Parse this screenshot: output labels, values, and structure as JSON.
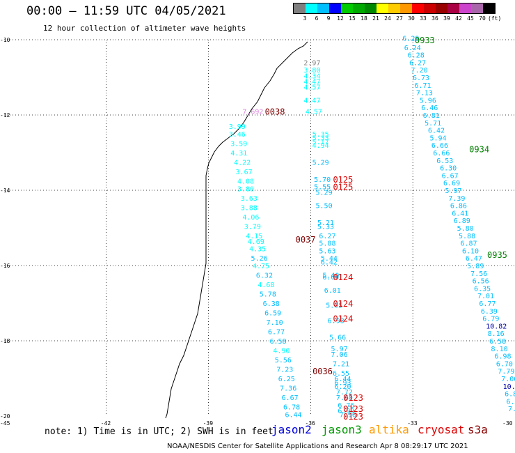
{
  "title": "00:00 – 11:59 UTC 04/05/2021",
  "subtitle": "12 hour collection of altimeter wave heights",
  "scale": {
    "colors": [
      "#808080",
      "#00ffff",
      "#00bfff",
      "#0000ff",
      "#00cc00",
      "#00aa00",
      "#008800",
      "#ffff00",
      "#ffcc00",
      "#ff9900",
      "#ff0000",
      "#cc0000",
      "#990000",
      "#aa0044",
      "#cc44cc",
      "#aa66aa",
      "#000000"
    ],
    "labels": [
      "3",
      "6",
      "9",
      "12",
      "15",
      "18",
      "21",
      "24",
      "27",
      "30",
      "33",
      "36",
      "39",
      "42",
      "45",
      "70",
      "(ft)"
    ]
  },
  "axes": {
    "y_labels": [
      "-10",
      "-12",
      "-14",
      "-16",
      "-18",
      "-20"
    ],
    "x_labels": [
      "-45",
      "-42",
      "-39",
      "-36",
      "-33",
      "-30"
    ]
  },
  "chart_data": {
    "type": "scatter",
    "xlim": [
      -45,
      -30
    ],
    "ylim": [
      -20,
      -10
    ],
    "grid": true,
    "passes": [
      {
        "time": "0933",
        "color": "#008000",
        "label_pos": [
          -32.7,
          -10.0
        ]
      },
      {
        "time": "0934",
        "color": "#008000",
        "label_pos": [
          -31.1,
          -12.9
        ]
      },
      {
        "time": "0935",
        "color": "#008000",
        "label_pos": [
          -30.0,
          -15.7
        ]
      },
      {
        "time": "0038",
        "color": "#800000",
        "label_pos": [
          -37.1,
          -11.9
        ]
      },
      {
        "time": "0037",
        "color": "#800000",
        "label_pos": [
          -36.2,
          -15.3
        ]
      },
      {
        "time": "0036",
        "color": "#800000",
        "label_pos": [
          -35.7,
          -18.8
        ]
      },
      {
        "time": "0125",
        "color": "#e00000",
        "label_pos": [
          -35.1,
          -13.7
        ]
      },
      {
        "time": "0125",
        "color": "#e00000",
        "label_pos": [
          -35.1,
          -13.9
        ]
      },
      {
        "time": "0124",
        "color": "#e00000",
        "label_pos": [
          -35.1,
          -16.3
        ]
      },
      {
        "time": "0124",
        "color": "#e00000",
        "label_pos": [
          -35.1,
          -17.0
        ]
      },
      {
        "time": "0124",
        "color": "#e00000",
        "label_pos": [
          -35.1,
          -17.4
        ]
      },
      {
        "time": "0123",
        "color": "#e00000",
        "label_pos": [
          -34.8,
          -19.5
        ]
      },
      {
        "time": "0123",
        "color": "#e00000",
        "label_pos": [
          -34.8,
          -19.8
        ]
      },
      {
        "time": "0123",
        "color": "#e00000",
        "label_pos": [
          -34.8,
          -20.0
        ]
      }
    ],
    "points": [
      {
        "x": -33.1,
        "y": -9.95,
        "v": "6.29",
        "c": "#00bfff"
      },
      {
        "x": -33.05,
        "y": -10.2,
        "v": "6.24",
        "c": "#00bfff"
      },
      {
        "x": -32.95,
        "y": -10.4,
        "v": "6.28",
        "c": "#00bfff"
      },
      {
        "x": -32.9,
        "y": -10.6,
        "v": "6.27",
        "c": "#00bfff"
      },
      {
        "x": -32.85,
        "y": -10.8,
        "v": "7.20",
        "c": "#00bfff"
      },
      {
        "x": -32.8,
        "y": -11.0,
        "v": "6.73",
        "c": "#00bfff"
      },
      {
        "x": -32.75,
        "y": -11.2,
        "v": "6.71",
        "c": "#00bfff"
      },
      {
        "x": -32.7,
        "y": -11.4,
        "v": "7.13",
        "c": "#00bfff"
      },
      {
        "x": -32.6,
        "y": -11.6,
        "v": "5.96",
        "c": "#00bfff"
      },
      {
        "x": -32.55,
        "y": -11.8,
        "v": "6.46",
        "c": "#00bfff"
      },
      {
        "x": -32.5,
        "y": -12.0,
        "v": "6.81",
        "c": "#00bfff"
      },
      {
        "x": -32.45,
        "y": -12.2,
        "v": "5.71",
        "c": "#00bfff"
      },
      {
        "x": -32.35,
        "y": -12.4,
        "v": "6.42",
        "c": "#00bfff"
      },
      {
        "x": -32.3,
        "y": -12.6,
        "v": "5.94",
        "c": "#00bfff"
      },
      {
        "x": -32.25,
        "y": -12.8,
        "v": "6.66",
        "c": "#00bfff"
      },
      {
        "x": -32.2,
        "y": -13.0,
        "v": "6.66",
        "c": "#00bfff"
      },
      {
        "x": -32.1,
        "y": -13.2,
        "v": "6.53",
        "c": "#00bfff"
      },
      {
        "x": -32.0,
        "y": -13.4,
        "v": "6.30",
        "c": "#00bfff"
      },
      {
        "x": -31.95,
        "y": -13.6,
        "v": "6.67",
        "c": "#00bfff"
      },
      {
        "x": -31.9,
        "y": -13.8,
        "v": "6.69",
        "c": "#00bfff"
      },
      {
        "x": -31.85,
        "y": -14.0,
        "v": "5.97",
        "c": "#00bfff"
      },
      {
        "x": -31.75,
        "y": -14.2,
        "v": "7.39",
        "c": "#00bfff"
      },
      {
        "x": -31.7,
        "y": -14.4,
        "v": "6.86",
        "c": "#00bfff"
      },
      {
        "x": -31.65,
        "y": -14.6,
        "v": "6.41",
        "c": "#00bfff"
      },
      {
        "x": -31.6,
        "y": -14.8,
        "v": "6.89",
        "c": "#00bfff"
      },
      {
        "x": -31.5,
        "y": -15.0,
        "v": "5.80",
        "c": "#00bfff"
      },
      {
        "x": -31.45,
        "y": -15.2,
        "v": "5.88",
        "c": "#00bfff"
      },
      {
        "x": -31.4,
        "y": -15.4,
        "v": "6.87",
        "c": "#00bfff"
      },
      {
        "x": -31.35,
        "y": -15.6,
        "v": "6.10",
        "c": "#00bfff"
      },
      {
        "x": -31.25,
        "y": -15.8,
        "v": "6.47",
        "c": "#00bfff"
      },
      {
        "x": -31.2,
        "y": -16.0,
        "v": "5.89",
        "c": "#00bfff"
      },
      {
        "x": -31.1,
        "y": -16.2,
        "v": "7.56",
        "c": "#00bfff"
      },
      {
        "x": -31.05,
        "y": -16.4,
        "v": "6.56",
        "c": "#00bfff"
      },
      {
        "x": -31.0,
        "y": -16.6,
        "v": "6.35",
        "c": "#00bfff"
      },
      {
        "x": -30.9,
        "y": -16.8,
        "v": "7.01",
        "c": "#00bfff"
      },
      {
        "x": -30.85,
        "y": -17.0,
        "v": "6.77",
        "c": "#00bfff"
      },
      {
        "x": -30.8,
        "y": -17.2,
        "v": "6.39",
        "c": "#00bfff"
      },
      {
        "x": -30.75,
        "y": -17.4,
        "v": "6.79",
        "c": "#00bfff"
      },
      {
        "x": -30.65,
        "y": -17.6,
        "v": "10.82",
        "c": "#0000aa"
      },
      {
        "x": -30.6,
        "y": -17.8,
        "v": "8.16",
        "c": "#00bfff"
      },
      {
        "x": -30.55,
        "y": -18.0,
        "v": "6.58",
        "c": "#00bfff"
      },
      {
        "x": -30.5,
        "y": -18.2,
        "v": "8.10",
        "c": "#00bfff"
      },
      {
        "x": -30.4,
        "y": -18.4,
        "v": "6.98",
        "c": "#00bfff"
      },
      {
        "x": -30.35,
        "y": -18.6,
        "v": "6.70",
        "c": "#00bfff"
      },
      {
        "x": -30.3,
        "y": -18.8,
        "v": "7.79",
        "c": "#00bfff"
      },
      {
        "x": -30.2,
        "y": -19.0,
        "v": "7.06",
        "c": "#00bfff"
      },
      {
        "x": -30.15,
        "y": -19.2,
        "v": "10.48",
        "c": "#0000aa"
      },
      {
        "x": -30.1,
        "y": -19.4,
        "v": "6.8",
        "c": "#00bfff"
      },
      {
        "x": -30.05,
        "y": -19.6,
        "v": "6.6",
        "c": "#00bfff"
      },
      {
        "x": -30.0,
        "y": -19.8,
        "v": "7.3",
        "c": "#00bfff"
      },
      {
        "x": -36.0,
        "y": -10.6,
        "v": "2.97",
        "c": "#808080"
      },
      {
        "x": -36.0,
        "y": -10.8,
        "v": "3.80",
        "c": "#00ffff"
      },
      {
        "x": -36.0,
        "y": -10.95,
        "v": "4.34",
        "c": "#00ffff"
      },
      {
        "x": -36.0,
        "y": -11.1,
        "v": "4.47",
        "c": "#00ffff"
      },
      {
        "x": -36.0,
        "y": -11.25,
        "v": "4.57",
        "c": "#00ffff"
      },
      {
        "x": -36.0,
        "y": -11.6,
        "v": "4.47",
        "c": "#00ffff"
      },
      {
        "x": -35.95,
        "y": -11.9,
        "v": "4.57",
        "c": "#00ffff"
      },
      {
        "x": -37.8,
        "y": -11.9,
        "v": "7.692",
        "c": "#dd88dd"
      },
      {
        "x": -38.2,
        "y": -12.3,
        "v": "3.99",
        "c": "#00ffff"
      },
      {
        "x": -38.2,
        "y": -12.5,
        "v": "3.46",
        "c": "#00ffff"
      },
      {
        "x": -38.15,
        "y": -12.75,
        "v": "3.59",
        "c": "#00ffff"
      },
      {
        "x": -38.15,
        "y": -13.0,
        "v": "4.31",
        "c": "#00ffff"
      },
      {
        "x": -38.05,
        "y": -13.25,
        "v": "4.22",
        "c": "#00ffff"
      },
      {
        "x": -38.0,
        "y": -13.5,
        "v": "3.67",
        "c": "#00ffff"
      },
      {
        "x": -37.95,
        "y": -13.75,
        "v": "4.08",
        "c": "#00ffff"
      },
      {
        "x": -37.95,
        "y": -13.95,
        "v": "3.80",
        "c": "#00ffff"
      },
      {
        "x": -37.85,
        "y": -14.2,
        "v": "3.63",
        "c": "#00ffff"
      },
      {
        "x": -37.85,
        "y": -14.45,
        "v": "3.88",
        "c": "#00ffff"
      },
      {
        "x": -37.8,
        "y": -14.7,
        "v": "4.06",
        "c": "#00ffff"
      },
      {
        "x": -37.75,
        "y": -14.95,
        "v": "3.79",
        "c": "#00ffff"
      },
      {
        "x": -37.7,
        "y": -15.2,
        "v": "4.15",
        "c": "#00ffff"
      },
      {
        "x": -37.65,
        "y": -15.35,
        "v": "4.69",
        "c": "#00ffff"
      },
      {
        "x": -37.6,
        "y": -15.55,
        "v": "4.35",
        "c": "#00ffff"
      },
      {
        "x": -37.55,
        "y": -15.8,
        "v": "5.26",
        "c": "#00bfff"
      },
      {
        "x": -37.5,
        "y": -16.0,
        "v": "4.75",
        "c": "#00ffff"
      },
      {
        "x": -37.4,
        "y": -16.25,
        "v": "6.32",
        "c": "#00bfff"
      },
      {
        "x": -37.35,
        "y": -16.5,
        "v": "4.68",
        "c": "#00ffff"
      },
      {
        "x": -37.3,
        "y": -16.75,
        "v": "5.78",
        "c": "#00bfff"
      },
      {
        "x": -37.2,
        "y": -17.0,
        "v": "6.38",
        "c": "#00bfff"
      },
      {
        "x": -37.15,
        "y": -17.25,
        "v": "6.59",
        "c": "#00bfff"
      },
      {
        "x": -37.1,
        "y": -17.5,
        "v": "7.10",
        "c": "#00bfff"
      },
      {
        "x": -37.05,
        "y": -17.75,
        "v": "6.77",
        "c": "#00bfff"
      },
      {
        "x": -37.0,
        "y": -18.0,
        "v": "6.58",
        "c": "#00bfff"
      },
      {
        "x": -36.9,
        "y": -18.25,
        "v": "4.90",
        "c": "#00ffff"
      },
      {
        "x": -36.85,
        "y": -18.5,
        "v": "5.56",
        "c": "#00bfff"
      },
      {
        "x": -36.8,
        "y": -18.75,
        "v": "7.23",
        "c": "#00bfff"
      },
      {
        "x": -36.75,
        "y": -19.0,
        "v": "6.25",
        "c": "#00bfff"
      },
      {
        "x": -36.7,
        "y": -19.25,
        "v": "7.36",
        "c": "#00bfff"
      },
      {
        "x": -36.65,
        "y": -19.5,
        "v": "6.67",
        "c": "#00bfff"
      },
      {
        "x": -36.6,
        "y": -19.75,
        "v": "6.78",
        "c": "#00bfff"
      },
      {
        "x": -36.55,
        "y": -19.95,
        "v": "6.44",
        "c": "#00bfff"
      },
      {
        "x": -35.75,
        "y": -12.5,
        "v": "5.35",
        "c": "#00ffff"
      },
      {
        "x": -35.75,
        "y": -12.6,
        "v": "5.33",
        "c": "#00ffff"
      },
      {
        "x": -35.75,
        "y": -12.7,
        "v": "5.17",
        "c": "#00ffff"
      },
      {
        "x": -35.75,
        "y": -12.8,
        "v": "4.94",
        "c": "#00ffff"
      },
      {
        "x": -35.75,
        "y": -13.25,
        "v": "5.29",
        "c": "#00bfff"
      },
      {
        "x": -35.7,
        "y": -13.7,
        "v": "5.70",
        "c": "#00bfff"
      },
      {
        "x": -35.7,
        "y": -13.9,
        "v": "5.55",
        "c": "#00bfff"
      },
      {
        "x": -35.65,
        "y": -14.05,
        "v": "5.29",
        "c": "#00bfff"
      },
      {
        "x": -35.65,
        "y": -14.4,
        "v": "5.50",
        "c": "#00bfff"
      },
      {
        "x": -35.6,
        "y": -14.85,
        "v": "5.21",
        "c": "#00bfff"
      },
      {
        "x": -35.6,
        "y": -14.95,
        "v": "5.33",
        "c": "#00bfff"
      },
      {
        "x": -35.55,
        "y": -15.2,
        "v": "6.27",
        "c": "#00bfff"
      },
      {
        "x": -35.55,
        "y": -15.4,
        "v": "5.88",
        "c": "#00bfff"
      },
      {
        "x": -35.55,
        "y": -15.6,
        "v": "5.63",
        "c": "#00bfff"
      },
      {
        "x": -35.5,
        "y": -15.8,
        "v": "5.44",
        "c": "#00bfff"
      },
      {
        "x": -35.5,
        "y": -15.9,
        "v": "6.42",
        "c": "#00bfff"
      },
      {
        "x": -35.45,
        "y": -16.25,
        "v": "5.40",
        "c": "#00bfff"
      },
      {
        "x": -35.45,
        "y": -16.3,
        "v": "6.04",
        "c": "#00bfff"
      },
      {
        "x": -35.4,
        "y": -16.65,
        "v": "6.01",
        "c": "#00bfff"
      },
      {
        "x": -35.35,
        "y": -17.05,
        "v": "5.65",
        "c": "#00bfff"
      },
      {
        "x": -35.3,
        "y": -17.45,
        "v": "6.93",
        "c": "#00bfff"
      },
      {
        "x": -35.25,
        "y": -17.9,
        "v": "5.66",
        "c": "#00bfff"
      },
      {
        "x": -35.2,
        "y": -18.2,
        "v": "5.97",
        "c": "#00bfff"
      },
      {
        "x": -35.2,
        "y": -18.35,
        "v": "7.06",
        "c": "#00bfff"
      },
      {
        "x": -35.15,
        "y": -18.6,
        "v": "7.21",
        "c": "#00bfff"
      },
      {
        "x": -35.15,
        "y": -18.85,
        "v": "6.55",
        "c": "#00bfff"
      },
      {
        "x": -35.1,
        "y": -19.0,
        "v": "6.44",
        "c": "#00bfff"
      },
      {
        "x": -35.1,
        "y": -19.1,
        "v": "6.93",
        "c": "#00bfff"
      },
      {
        "x": -35.1,
        "y": -19.2,
        "v": "6.20",
        "c": "#00bfff"
      },
      {
        "x": -35.05,
        "y": -19.35,
        "v": "7.72",
        "c": "#00bfff"
      },
      {
        "x": -35.05,
        "y": -19.5,
        "v": "7.60",
        "c": "#00bfff"
      },
      {
        "x": -35.0,
        "y": -19.7,
        "v": "6.76",
        "c": "#00bfff"
      },
      {
        "x": -35.0,
        "y": -19.85,
        "v": "6.99",
        "c": "#00bfff"
      },
      {
        "x": -34.95,
        "y": -19.95,
        "v": "7.96",
        "c": "#00bfff"
      }
    ]
  },
  "note": "note: 1) Time is in UTC; 2) SWH is in feet",
  "satellites": [
    {
      "name": "jason2",
      "color": "#0000dd"
    },
    {
      "name": "jason3",
      "color": "#009900"
    },
    {
      "name": "altika",
      "color": "#ff9900"
    },
    {
      "name": "cryosat",
      "color": "#dd0000"
    },
    {
      "name": "s3a",
      "color": "#880000"
    }
  ],
  "footer": "NOAA/NESDIS Center for Satellite Applications and Research    Apr  8 08:29:17 UTC 2021"
}
